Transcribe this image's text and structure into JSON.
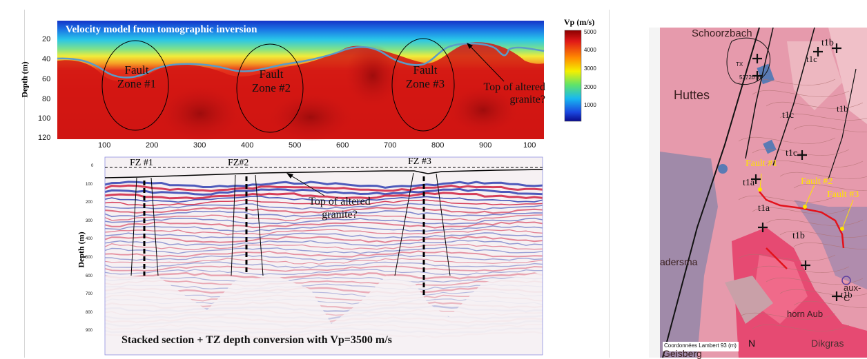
{
  "velocity_panel": {
    "title": "Velocity model from tomographic inversion",
    "ylabel": "Depth (m)",
    "y_ticks": [
      "20",
      "40",
      "60",
      "80",
      "100",
      "120"
    ],
    "x_ticks": [
      "100",
      "200",
      "300",
      "400",
      "500",
      "600",
      "700",
      "800",
      "900",
      "100"
    ],
    "fault_zones": [
      {
        "line1": "Fault",
        "line2": "Zone #1"
      },
      {
        "line1": "Fault",
        "line2": "Zone #2"
      },
      {
        "line1": "Fault",
        "line2": "Zone #3"
      }
    ],
    "annotation_line1": "Top of altered",
    "annotation_line2": "granite?"
  },
  "colorbar": {
    "title": "Vp (m/s)",
    "ticks": [
      "5000",
      "4000",
      "3000",
      "2000",
      "1000"
    ]
  },
  "seismic_panel": {
    "ylabel": "Depth (m)",
    "y_ticks": [
      "0",
      "100",
      "200",
      "300",
      "400",
      "500",
      "600",
      "700",
      "800",
      "900"
    ],
    "fz_labels": [
      "FZ #1",
      "FZ#2",
      "FZ #3"
    ],
    "annotation_line1": "Top of altered",
    "annotation_line2": "granite?",
    "caption": "Stacked section + TZ depth conversion with Vp=3500 m/s"
  },
  "map_panel": {
    "place_labels": [
      "Schoorzbach",
      "Huttes",
      "adersma",
      "aux-C",
      "Dikgras",
      "Geisberg",
      "horn Aub"
    ],
    "geology_labels": [
      "t1b",
      "t1c",
      "t1c",
      "t1c",
      "t1a",
      "t1a",
      "t1b",
      "t1b",
      "t1b"
    ],
    "area_label": "53720 m²",
    "tx_label": "TX",
    "fault_labels": [
      "Fault #1",
      "Fault #2",
      "Fault #3"
    ],
    "coord_label": "Coordonnées Lambert 93 (m)",
    "north_label": "N",
    "colors": {
      "fault_trace": "#e3121b",
      "fault_label": "#ffe400"
    }
  }
}
